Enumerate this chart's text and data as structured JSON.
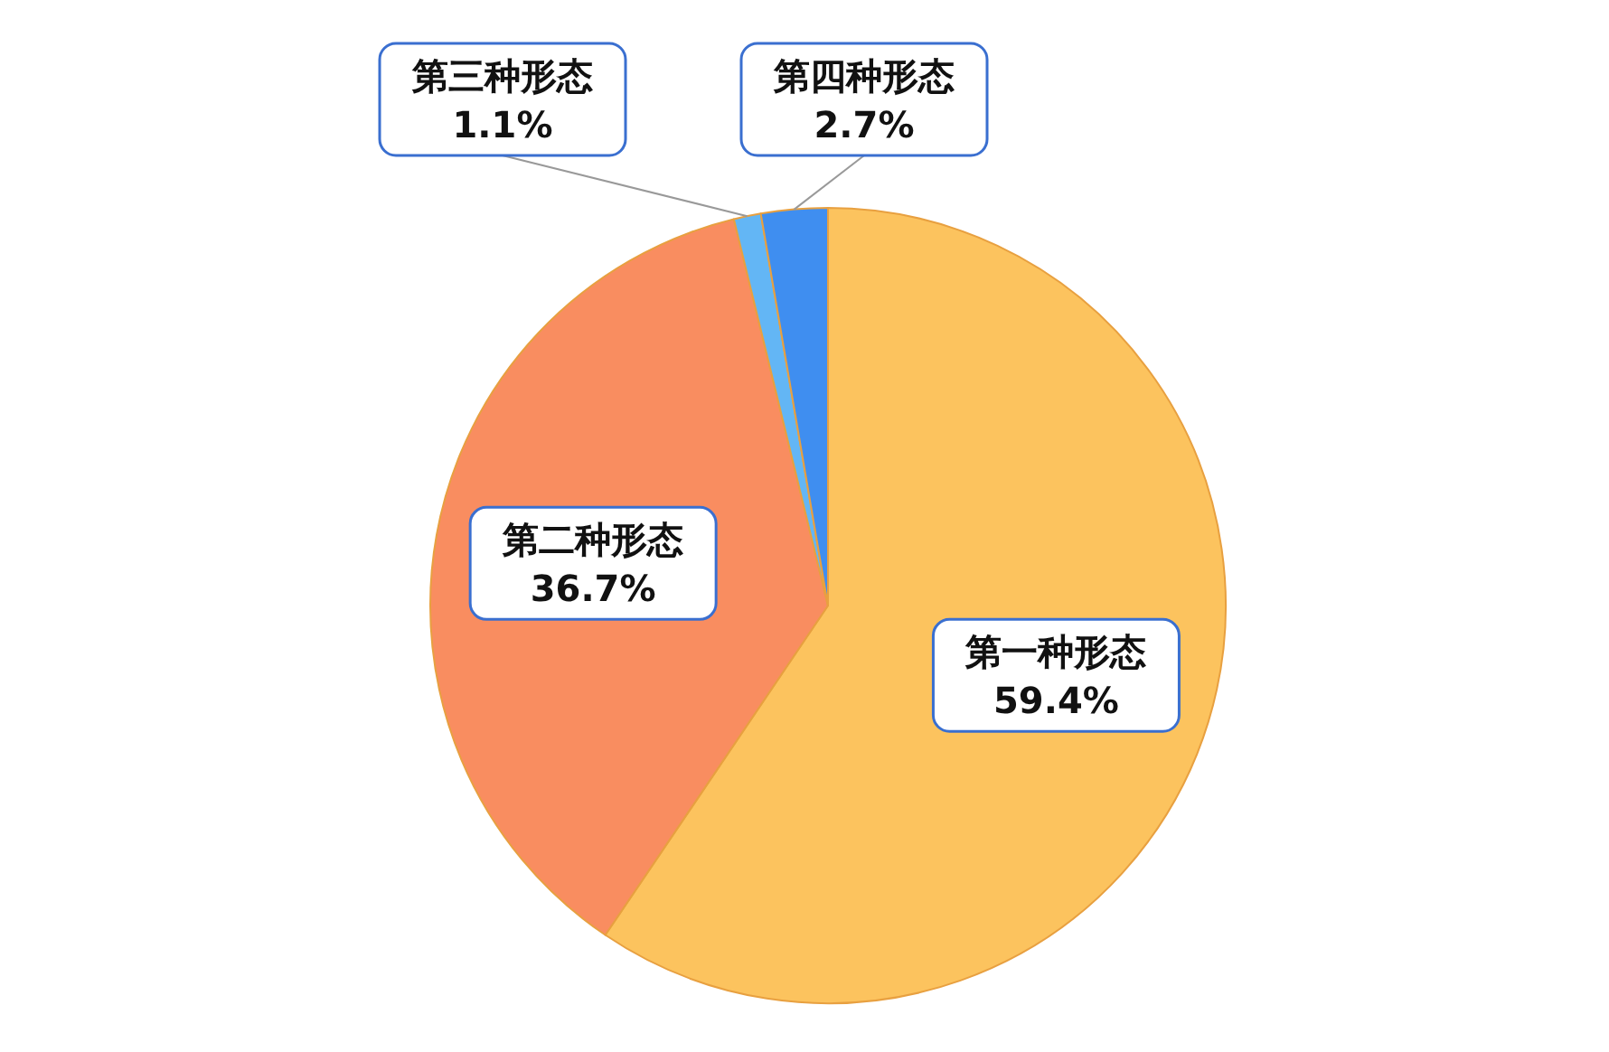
{
  "chart_data": {
    "type": "pie",
    "categories": [
      "第一种形态",
      "第二种形态",
      "第三种形态",
      "第四种形态"
    ],
    "values": [
      59.4,
      36.7,
      1.1,
      2.7
    ],
    "value_labels": [
      "59.4%",
      "36.7%",
      "1.1%",
      "2.7%"
    ],
    "colors": [
      "#fcc35e",
      "#f98d60",
      "#63b6f5",
      "#3f8ef0"
    ]
  }
}
